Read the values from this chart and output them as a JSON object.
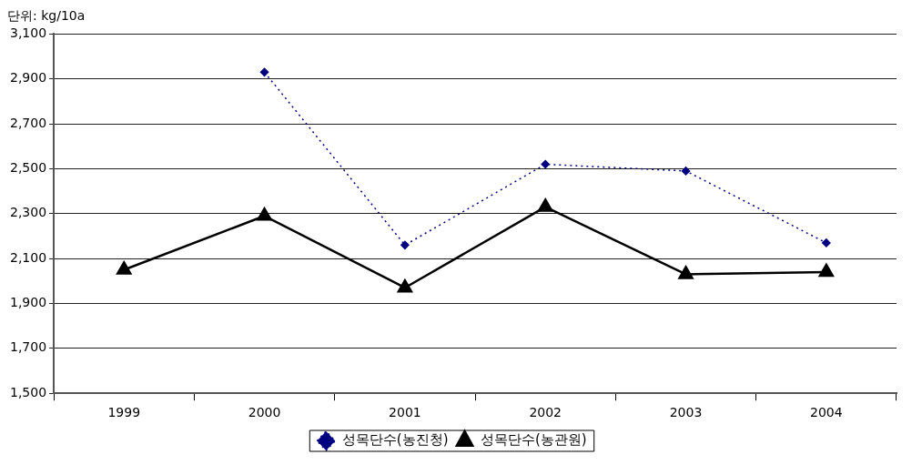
{
  "chart_data": {
    "type": "line",
    "annotations": [
      "단위: kg/10a"
    ],
    "categories": [
      "1999",
      "2000",
      "2001",
      "2002",
      "2003",
      "2004"
    ],
    "series": [
      {
        "name": "성목단수(농진청)",
        "color": "#000080",
        "values": [
          null,
          2930,
          2160,
          2520,
          2490,
          2170
        ],
        "marker": "diamond",
        "line_style": "dotted"
      },
      {
        "name": "성목단수(농관원)",
        "color": "#000000",
        "values": [
          2050,
          2290,
          1970,
          2330,
          2030,
          2040
        ],
        "marker": "triangle",
        "line_style": "solid"
      }
    ],
    "ylim": [
      1500,
      3100
    ],
    "yticks": [
      {
        "value": 1500,
        "label": "1,500"
      },
      {
        "value": 1700,
        "label": "1,700"
      },
      {
        "value": 1900,
        "label": "1,900"
      },
      {
        "value": 2100,
        "label": "2,100"
      },
      {
        "value": 2300,
        "label": "2,300"
      },
      {
        "value": 2500,
        "label": "2,500"
      },
      {
        "value": 2700,
        "label": "2,700"
      },
      {
        "value": 2900,
        "label": "2,900"
      },
      {
        "value": 3100,
        "label": "3,100"
      }
    ],
    "grid": "y",
    "legend": "bottom"
  }
}
